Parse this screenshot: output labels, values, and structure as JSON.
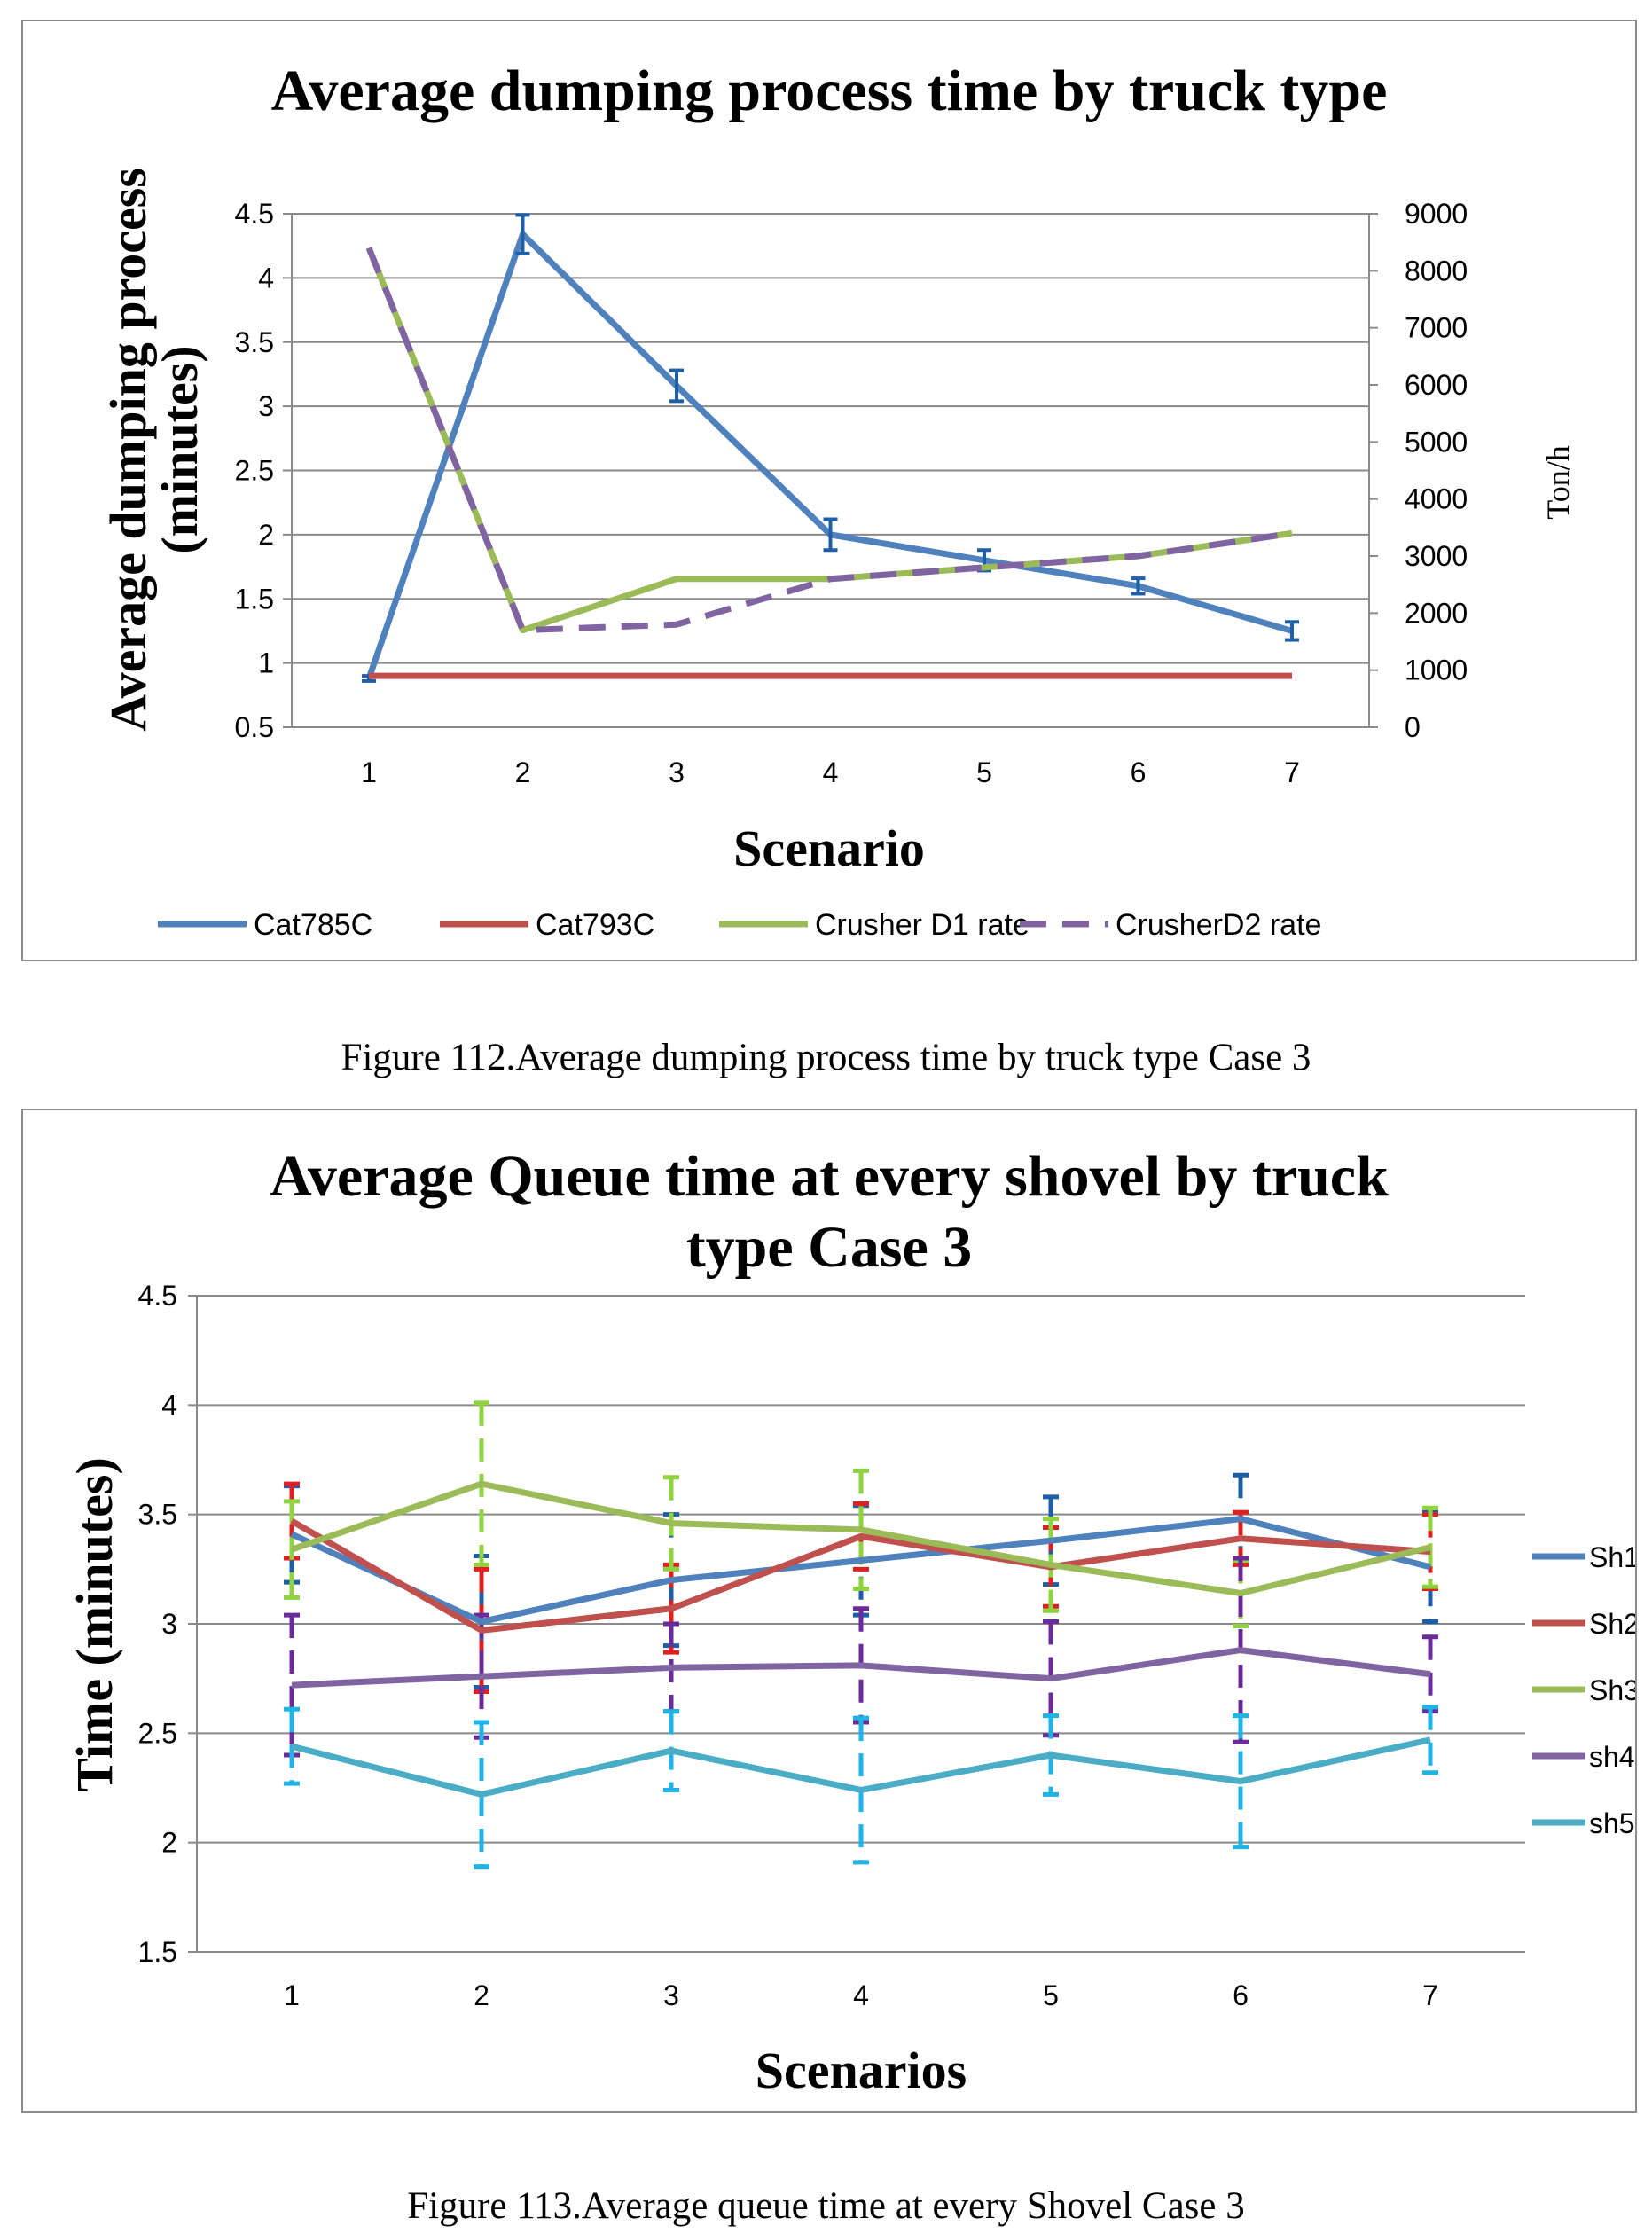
{
  "chart_data": [
    {
      "type": "line",
      "title": "Average dumping process time by truck type",
      "xlabel": "Scenario",
      "ylabel": "Average dumping process (minutes)",
      "ylabel_lines": [
        "Average dumping process",
        "(minutes)"
      ],
      "y2label": "Ton/h",
      "categories": [
        "1",
        "2",
        "3",
        "4",
        "5",
        "6",
        "7"
      ],
      "ylim": [
        0.5,
        4.5
      ],
      "yticks": [
        "0.5",
        "1",
        "1.5",
        "2",
        "2.5",
        "3",
        "3.5",
        "4",
        "4.5"
      ],
      "y2lim": [
        0,
        9000
      ],
      "y2ticks": [
        "0",
        "1000",
        "2000",
        "3000",
        "4000",
        "5000",
        "6000",
        "7000",
        "8000",
        "9000"
      ],
      "grid": true,
      "legend": "bottom",
      "series": [
        {
          "name": "Cat785C",
          "axis": "left",
          "color": "#4f81bd",
          "dash": false,
          "values": [
            0.88,
            4.34,
            3.16,
            2.0,
            1.8,
            1.6,
            1.25
          ],
          "error": [
            0.02,
            0.15,
            0.12,
            0.12,
            0.08,
            0.06,
            0.07
          ]
        },
        {
          "name": "Cat793C",
          "axis": "left",
          "color": "#c0504d",
          "dash": false,
          "values": [
            0.9,
            0.9,
            0.9,
            0.9,
            0.9,
            0.9,
            0.9
          ]
        },
        {
          "name": "Crusher D1 rate",
          "axis": "right",
          "color": "#9bbb59",
          "dash": false,
          "values": [
            8400,
            1700,
            2600,
            2600,
            2800,
            3000,
            3400
          ]
        },
        {
          "name": "CrusherD2 rate",
          "axis": "right",
          "color": "#8064a2",
          "dash": true,
          "values": [
            8400,
            1700,
            1800,
            2600,
            2800,
            3000,
            3400
          ]
        }
      ]
    },
    {
      "type": "line",
      "title": "Average Queue time at every shovel by truck type Case  3",
      "title_lines": [
        "Average Queue time at every shovel by truck",
        "type Case  3"
      ],
      "xlabel": "Scenarios",
      "ylabel": "Time (minutes)",
      "categories": [
        "1",
        "2",
        "3",
        "4",
        "5",
        "6",
        "7"
      ],
      "ylim": [
        1.5,
        4.5
      ],
      "yticks": [
        "1.5",
        "2",
        "2.5",
        "3",
        "3.5",
        "4",
        "4.5"
      ],
      "grid": true,
      "legend": "right",
      "series": [
        {
          "name": "Sh1",
          "color": "#4f81bd",
          "errcolor": "#1f5fa8",
          "values": [
            3.41,
            3.01,
            3.2,
            3.29,
            3.38,
            3.48,
            3.26
          ],
          "error": [
            0.22,
            0.3,
            0.3,
            0.25,
            0.2,
            0.2,
            0.25
          ]
        },
        {
          "name": "Sh2",
          "color": "#c0504d",
          "errcolor": "#e02020",
          "values": [
            3.47,
            2.97,
            3.07,
            3.4,
            3.26,
            3.39,
            3.33
          ],
          "error": [
            0.17,
            0.28,
            0.2,
            0.15,
            0.18,
            0.12,
            0.17
          ]
        },
        {
          "name": "Sh3",
          "color": "#9bbb59",
          "errcolor": "#8fd33f",
          "values": [
            3.34,
            3.64,
            3.46,
            3.43,
            3.27,
            3.14,
            3.35
          ],
          "error": [
            0.22,
            0.37,
            0.21,
            0.27,
            0.21,
            0.15,
            0.18
          ]
        },
        {
          "name": "sh4",
          "color": "#8064a2",
          "errcolor": "#6a2c9a",
          "values": [
            2.72,
            2.76,
            2.8,
            2.81,
            2.75,
            2.88,
            2.77
          ],
          "error": [
            0.32,
            0.28,
            0.2,
            0.26,
            0.26,
            0.42,
            0.17
          ]
        },
        {
          "name": "sh5",
          "color": "#4bacc6",
          "errcolor": "#1fb3e6",
          "values": [
            2.44,
            2.22,
            2.42,
            2.24,
            2.4,
            2.28,
            2.47
          ],
          "error": [
            0.17,
            0.33,
            0.18,
            0.33,
            0.18,
            0.3,
            0.15
          ]
        }
      ]
    }
  ],
  "captions": {
    "figure112": "Figure 112.Average dumping process time by truck type Case 3",
    "figure113": "Figure 113.Average queue time at every Shovel Case 3"
  }
}
